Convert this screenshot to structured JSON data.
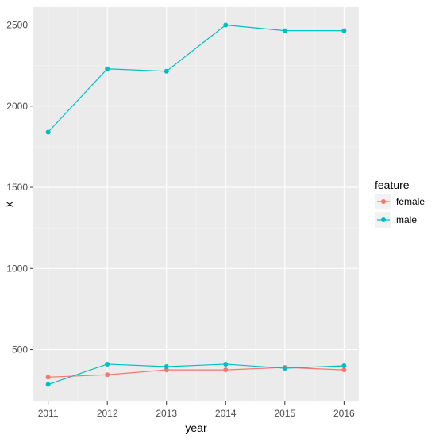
{
  "chart_data": {
    "type": "line",
    "title": "",
    "xlabel": "year",
    "ylabel": "x",
    "x": [
      2011,
      2012,
      2013,
      2014,
      2015,
      2016
    ],
    "x_ticks": [
      "2011",
      "2012",
      "2013",
      "2014",
      "2015",
      "2016"
    ],
    "y_ticks": [
      500,
      1000,
      1500,
      2000,
      2500
    ],
    "y_tick_labels": [
      "500",
      "1000",
      "1500",
      "2000",
      "2500"
    ],
    "xlim": [
      2010.75,
      2016.25
    ],
    "ylim": [
      180,
      2610
    ],
    "grid": true,
    "legend": {
      "title": "feature",
      "position": "right"
    },
    "series": [
      {
        "name": "female",
        "color": "#F8766D",
        "values": [
          330,
          345,
          375,
          375,
          390,
          375
        ]
      },
      {
        "name": "male",
        "color": "#00BFC4",
        "values": [
          285,
          410,
          395,
          410,
          385,
          400
        ]
      },
      {
        "name": "male",
        "color": "#00BFC4",
        "values": [
          1840,
          2230,
          2215,
          2500,
          2465,
          2465
        ]
      }
    ]
  }
}
